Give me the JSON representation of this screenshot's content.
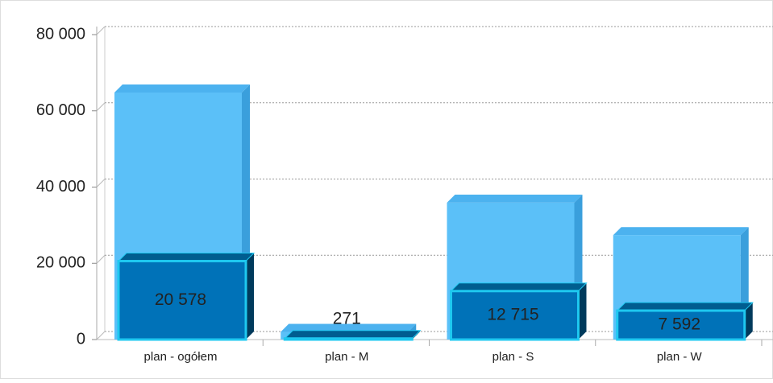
{
  "chart_data": {
    "type": "bar",
    "categories": [
      "plan - ogółem",
      "plan - M",
      "plan - S",
      "plan - W"
    ],
    "series": [
      {
        "color": "#5bc0f8",
        "values": [
          64800,
          2000,
          35900,
          27400
        ]
      },
      {
        "color": "#0072b8",
        "values": [
          20578,
          271,
          12715,
          7592
        ],
        "value_labels": [
          "20 578",
          "271",
          "12 715",
          "7 592"
        ]
      }
    ],
    "ylim": [
      0,
      80000
    ],
    "yticks": [
      0,
      {
        "value": 20000,
        "label": "20 000"
      },
      {
        "value": 40000,
        "label": "40 000"
      },
      {
        "value": 60000,
        "label": "60 000"
      },
      {
        "value": 80000,
        "label": "80 000"
      }
    ],
    "grid": true
  }
}
